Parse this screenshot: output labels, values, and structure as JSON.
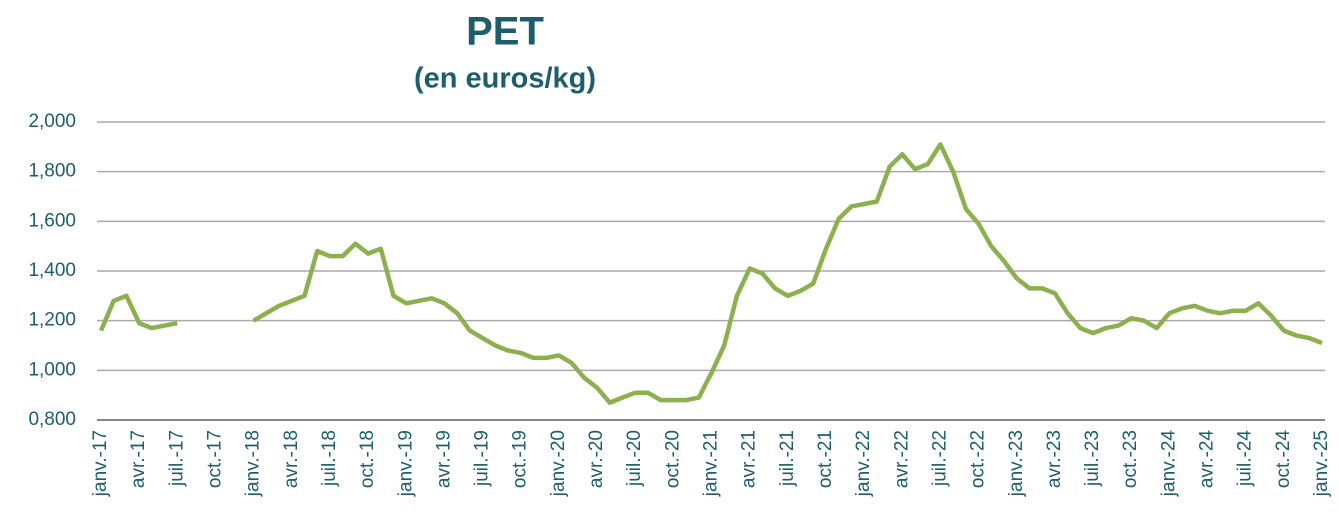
{
  "chart_data": {
    "type": "line",
    "title": "PET",
    "subtitle": "(en euros/kg)",
    "categories": [
      "janv.-17",
      null,
      null,
      "avr.-17",
      null,
      null,
      "juil.-17",
      null,
      null,
      "oct.-17",
      null,
      null,
      "janv.-18",
      null,
      null,
      "avr.-18",
      null,
      null,
      "juil.-18",
      null,
      null,
      "oct.-18",
      null,
      null,
      "janv.-19",
      null,
      null,
      "avr.-19",
      null,
      null,
      "juil.-19",
      null,
      null,
      "oct.-19",
      null,
      null,
      "janv.-20",
      null,
      null,
      "avr.-20",
      null,
      null,
      "juil.-20",
      null,
      null,
      "oct.-20",
      null,
      null,
      "janv.-21",
      null,
      null,
      "avr.-21",
      null,
      null,
      "juil.-21",
      null,
      null,
      "oct.-21",
      null,
      null,
      "janv.-22",
      null,
      null,
      "avr.-22",
      null,
      null,
      "juil.-22",
      null,
      null,
      "oct.-22",
      null,
      null,
      "janv.-23",
      null,
      null,
      "avr.-23",
      null,
      null,
      "juil.-23",
      null,
      null,
      "oct.-23",
      null,
      null,
      "janv.-24",
      null,
      null,
      "avr.-24",
      null,
      null,
      "juil.-24",
      null,
      null,
      "oct.-24",
      null,
      null,
      "janv.-25"
    ],
    "series": [
      {
        "name": "PET",
        "color": "#8db04f",
        "values": [
          1.16,
          1.28,
          1.3,
          1.19,
          1.17,
          1.18,
          1.19,
          null,
          null,
          null,
          null,
          null,
          1.2,
          1.23,
          1.26,
          1.28,
          1.3,
          1.48,
          1.46,
          1.46,
          1.51,
          1.47,
          1.49,
          1.3,
          1.27,
          1.28,
          1.29,
          1.27,
          1.23,
          1.16,
          1.13,
          1.1,
          1.08,
          1.07,
          1.05,
          1.05,
          1.06,
          1.03,
          0.97,
          0.93,
          0.87,
          0.89,
          0.91,
          0.91,
          0.88,
          0.88,
          0.88,
          0.89,
          0.99,
          1.1,
          1.3,
          1.41,
          1.39,
          1.33,
          1.3,
          1.32,
          1.35,
          1.49,
          1.61,
          1.66,
          1.67,
          1.68,
          1.82,
          1.87,
          1.81,
          1.83,
          1.91,
          1.8,
          1.65,
          1.59,
          1.5,
          1.44,
          1.37,
          1.33,
          1.33,
          1.31,
          1.23,
          1.17,
          1.15,
          1.17,
          1.18,
          1.21,
          1.2,
          1.17,
          1.23,
          1.25,
          1.26,
          1.24,
          1.23,
          1.24,
          1.24,
          1.27,
          1.22,
          1.16,
          1.14,
          1.13,
          1.11
        ]
      }
    ],
    "ylim": [
      0.8,
      2.0
    ],
    "yticks": [
      {
        "value": 0.8,
        "label": "0,800"
      },
      {
        "value": 1.0,
        "label": "1,000"
      },
      {
        "value": 1.2,
        "label": "1,200"
      },
      {
        "value": 1.4,
        "label": "1,400"
      },
      {
        "value": 1.6,
        "label": "1,600"
      },
      {
        "value": 1.8,
        "label": "1,800"
      },
      {
        "value": 2.0,
        "label": "2,000"
      }
    ],
    "grid": true
  }
}
